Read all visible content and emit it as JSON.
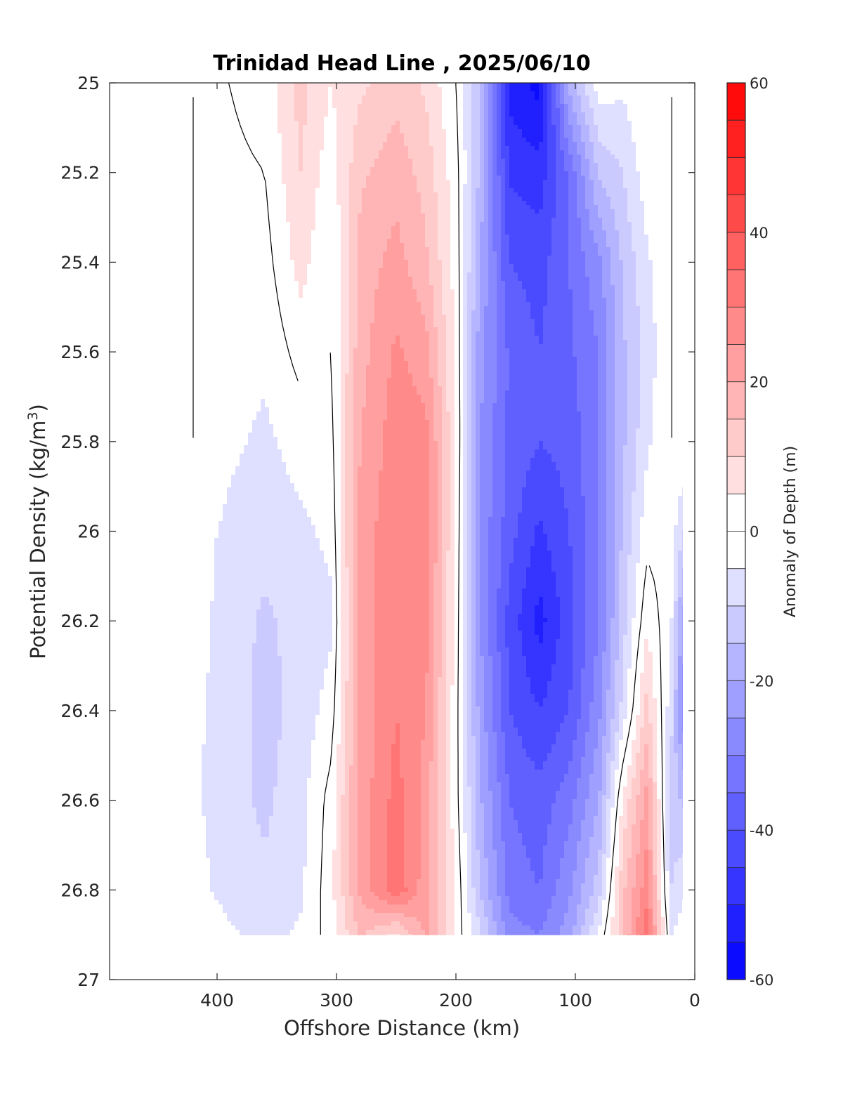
{
  "chart_data": {
    "type": "heatmap",
    "title": "Trinidad Head Line , 2025/06/10",
    "xlabel": "Offshore Distance (km)",
    "ylabel": "Potential Density (kg/m",
    "ylabel_superscript": "3",
    "ylabel_close": ")",
    "colorbar_label": "Anomaly of Depth (m)",
    "xlim": [
      490,
      0
    ],
    "ylim": [
      25,
      27
    ],
    "x_reversed": true,
    "y_reversed": true,
    "x_ticks": [
      400,
      300,
      200,
      100,
      0
    ],
    "y_ticks": [
      25,
      25.2,
      25.4,
      25.6,
      25.8,
      26,
      26.2,
      26.4,
      26.6,
      26.8,
      27
    ],
    "y_tick_labels": [
      "25",
      "25.2",
      "25.4",
      "25.6",
      "25.8",
      "26",
      "26.2",
      "26.4",
      "26.6",
      "26.8",
      "27"
    ],
    "colorbar_ticks": [
      60,
      40,
      20,
      0,
      -20,
      -40,
      -60
    ],
    "colorbar_range": [
      -60,
      60
    ],
    "colorbar_step": 5,
    "colormap": {
      "low": "#0000ff",
      "mid": "#ffffff",
      "high": "#ff0000"
    },
    "data_extent": {
      "x": [
        420,
        10
      ],
      "y": [
        25,
        26.9
      ]
    },
    "columns": [
      {
        "x": 420,
        "values": [
          0,
          0,
          0,
          0,
          0,
          -3,
          -3,
          -4,
          -4,
          -3,
          0
        ]
      },
      {
        "x": 390,
        "values": [
          0,
          -1,
          -2,
          -3,
          -4,
          -6,
          -7,
          -7,
          -8,
          -7,
          -4
        ]
      },
      {
        "x": 360,
        "values": [
          2,
          0,
          -2,
          -4,
          -6,
          -8,
          -11,
          -12,
          -11,
          -9,
          -7
        ]
      },
      {
        "x": 330,
        "values": [
          12,
          10,
          7,
          2,
          -3,
          -6,
          -8,
          -8,
          -7,
          -6,
          -4
        ]
      },
      {
        "x": 305,
        "values": [
          5,
          2,
          0,
          0,
          -2,
          -4,
          -6,
          -3,
          2,
          3,
          2
        ]
      },
      {
        "x": 280,
        "values": [
          9,
          14,
          17,
          18,
          20,
          22,
          22,
          21,
          22,
          21,
          16
        ]
      },
      {
        "x": 250,
        "values": [
          13,
          18,
          22,
          26,
          28,
          29,
          29,
          30,
          32,
          34,
          8
        ]
      },
      {
        "x": 225,
        "values": [
          9,
          13,
          16,
          22,
          27,
          28,
          27,
          25,
          23,
          22,
          21
        ]
      },
      {
        "x": 200,
        "values": [
          0,
          2,
          3,
          4,
          5,
          4,
          3,
          2,
          2,
          4,
          3
        ]
      },
      {
        "x": 180,
        "values": [
          -14,
          -16,
          -20,
          -23,
          -25,
          -26,
          -25,
          -22,
          -19,
          -15,
          -9
        ]
      },
      {
        "x": 155,
        "values": [
          -52,
          -46,
          -40,
          -36,
          -36,
          -38,
          -42,
          -40,
          -35,
          -32,
          -28
        ]
      },
      {
        "x": 130,
        "values": [
          -57,
          -48,
          -42,
          -40,
          -40,
          -46,
          -52,
          -45,
          -38,
          -35,
          -30
        ]
      },
      {
        "x": 105,
        "values": [
          -18,
          -34,
          -35,
          -36,
          -38,
          -40,
          -42,
          -40,
          -32,
          -26,
          -22
        ]
      },
      {
        "x": 80,
        "values": [
          -2,
          -14,
          -26,
          -30,
          -30,
          -30,
          -30,
          -26,
          -20,
          -12,
          -4
        ]
      },
      {
        "x": 60,
        "values": [
          -4,
          -10,
          -14,
          -16,
          -16,
          -14,
          -12,
          -8,
          6,
          14,
          15
        ]
      },
      {
        "x": 40,
        "values": [
          0,
          -2,
          -6,
          -8,
          -6,
          -2,
          4,
          12,
          22,
          28,
          34
        ]
      },
      {
        "x": 20,
        "values": [
          0,
          0,
          0,
          0,
          0,
          -2,
          -4,
          -8,
          -12,
          -10,
          -6
        ]
      },
      {
        "x": 10,
        "values": [
          0,
          0,
          0,
          0,
          0,
          -10,
          -22,
          -28,
          -16,
          -6,
          -2
        ]
      }
    ],
    "column_y": [
      25,
      25.2,
      25.4,
      25.6,
      25.8,
      26,
      26.2,
      26.4,
      26.6,
      26.8,
      26.9
    ]
  }
}
